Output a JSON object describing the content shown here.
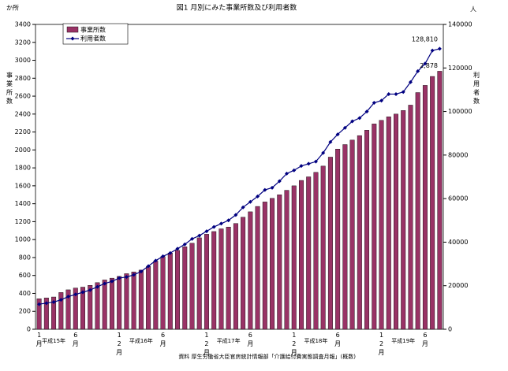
{
  "chart_data": {
    "type": "bar-line",
    "title": "図1 月別にみた事業所数及び利用者数",
    "y_unit": "か所",
    "y2_unit": "人",
    "y_label": "事業所数",
    "y2_label": "利用者数",
    "categories": [
      "1月",
      null,
      null,
      null,
      null,
      "6月",
      null,
      null,
      null,
      null,
      null,
      "12月",
      null,
      null,
      null,
      null,
      null,
      "6月",
      null,
      null,
      null,
      null,
      null,
      "12月",
      null,
      null,
      null,
      null,
      null,
      "6月",
      null,
      null,
      null,
      null,
      null,
      "12月",
      null,
      null,
      null,
      null,
      null,
      "6月",
      null,
      null,
      null,
      null,
      null,
      "12月",
      null,
      null,
      null,
      null,
      null,
      "6月",
      null,
      null
    ],
    "year_labels": [
      null,
      null,
      "平成15年",
      null,
      null,
      null,
      null,
      null,
      null,
      null,
      null,
      null,
      null,
      null,
      "平成16年",
      null,
      null,
      null,
      null,
      null,
      null,
      null,
      null,
      null,
      null,
      null,
      "平成17年",
      null,
      null,
      null,
      null,
      null,
      null,
      null,
      null,
      null,
      null,
      null,
      "平成18年",
      null,
      null,
      null,
      null,
      null,
      null,
      null,
      null,
      null,
      null,
      null,
      "平成19年",
      null,
      null,
      null,
      null,
      null
    ],
    "series": [
      {
        "name": "事業所数",
        "color": "#993366",
        "values": [
          340,
          350,
          360,
          410,
          440,
          460,
          470,
          490,
          520,
          550,
          570,
          590,
          620,
          640,
          660,
          700,
          760,
          810,
          850,
          880,
          920,
          960,
          1020,
          1060,
          1090,
          1120,
          1140,
          1180,
          1250,
          1310,
          1370,
          1420,
          1460,
          1500,
          1550,
          1600,
          1660,
          1700,
          1750,
          1820,
          1920,
          2010,
          2060,
          2110,
          2160,
          2220,
          2290,
          2330,
          2370,
          2400,
          2440,
          2500,
          2640,
          2720,
          2820,
          2878
        ]
      },
      {
        "name": "利用者数",
        "color": "#000080",
        "axis": "y2",
        "values": [
          11500,
          12000,
          12500,
          13500,
          15000,
          16000,
          17000,
          18000,
          19500,
          21000,
          22000,
          23500,
          24000,
          25000,
          26500,
          29000,
          31500,
          33500,
          35000,
          37000,
          39000,
          41500,
          43000,
          45000,
          47000,
          48500,
          50000,
          52500,
          56000,
          58500,
          61000,
          64000,
          65000,
          68000,
          71500,
          73000,
          75000,
          76000,
          77000,
          81000,
          86000,
          89500,
          92500,
          95500,
          97000,
          100000,
          104000,
          105000,
          108000,
          108000,
          109000,
          113500,
          118500,
          122000,
          128000,
          128810
        ]
      }
    ],
    "annotations": [
      "128,810",
      "2,878"
    ],
    "ylim": [
      0,
      3400
    ],
    "yticks": [
      0,
      200,
      400,
      600,
      800,
      1000,
      1200,
      1400,
      1600,
      1800,
      2000,
      2200,
      2400,
      2600,
      2800,
      3000,
      3200,
      3400
    ],
    "y2lim": [
      0,
      140000
    ],
    "y2ticks": [
      0,
      20000,
      40000,
      60000,
      80000,
      100000,
      120000,
      140000
    ],
    "source": "資料 厚生労働省大臣官房統計情報部「介護給付費実態調査月報」(概数)"
  }
}
